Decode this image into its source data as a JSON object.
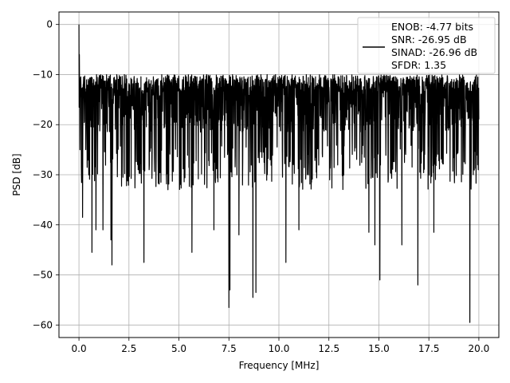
{
  "chart_data": {
    "type": "line",
    "title": "",
    "xlabel": "Frequency [MHz]",
    "ylabel": "PSD [dB]",
    "xlim": [
      -1.0,
      21.0
    ],
    "ylim": [
      -62.5,
      2.5
    ],
    "xticks": [
      0.0,
      2.5,
      5.0,
      7.5,
      10.0,
      12.5,
      15.0,
      17.5,
      20.0
    ],
    "xtick_labels": [
      "0.0",
      "2.5",
      "5.0",
      "7.5",
      "10.0",
      "12.5",
      "15.0",
      "17.5",
      "20.0"
    ],
    "yticks": [
      0,
      -10,
      -20,
      -30,
      -40,
      -50,
      -60
    ],
    "ytick_labels": [
      "0",
      "−10",
      "−20",
      "−30",
      "−40",
      "−50",
      "−60"
    ],
    "grid": true,
    "legend_position": "upper-right",
    "series": [
      {
        "legend_lines": [
          "ENOB: -4.77 bits",
          "SNR: -26.95 dB",
          "SINAD: -26.96 dB",
          "SFDR: 1.35"
        ],
        "color": "#000000",
        "style": "noise-band",
        "x_range": [
          0.0,
          20.0
        ],
        "band_top": -9.5,
        "band_bottom": -31.0,
        "start_peak": {
          "x": 0.0,
          "y": 0.0
        },
        "dips": [
          {
            "x": 0.05,
            "y": -25.0
          },
          {
            "x": 0.18,
            "y": -38.5
          },
          {
            "x": 0.65,
            "y": -45.5
          },
          {
            "x": 0.85,
            "y": -41.0
          },
          {
            "x": 1.2,
            "y": -41.0
          },
          {
            "x": 1.6,
            "y": -43.0
          },
          {
            "x": 1.65,
            "y": -48.0
          },
          {
            "x": 3.25,
            "y": -47.5
          },
          {
            "x": 5.65,
            "y": -45.5
          },
          {
            "x": 6.75,
            "y": -41.0
          },
          {
            "x": 7.5,
            "y": -56.5
          },
          {
            "x": 7.55,
            "y": -53.0
          },
          {
            "x": 8.0,
            "y": -42.0
          },
          {
            "x": 8.7,
            "y": -54.5
          },
          {
            "x": 8.85,
            "y": -53.5
          },
          {
            "x": 10.35,
            "y": -47.5
          },
          {
            "x": 11.0,
            "y": -41.0
          },
          {
            "x": 14.5,
            "y": -41.5
          },
          {
            "x": 14.8,
            "y": -44.0
          },
          {
            "x": 15.05,
            "y": -51.0
          },
          {
            "x": 16.15,
            "y": -44.0
          },
          {
            "x": 16.95,
            "y": -52.0
          },
          {
            "x": 17.75,
            "y": -41.5
          },
          {
            "x": 19.55,
            "y": -59.5
          }
        ]
      }
    ]
  }
}
